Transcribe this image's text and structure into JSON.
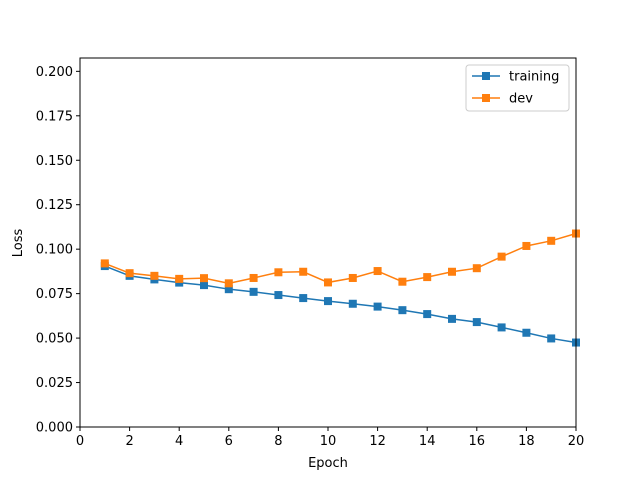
{
  "chart_data": {
    "type": "line",
    "title": "",
    "xlabel": "Epoch",
    "ylabel": "Loss",
    "xlim": [
      0,
      20
    ],
    "ylim": [
      0.0,
      0.2075
    ],
    "x_ticks": [
      0,
      2,
      4,
      6,
      8,
      10,
      12,
      14,
      16,
      18,
      20
    ],
    "y_ticks": [
      0.0,
      0.025,
      0.05,
      0.075,
      0.1,
      0.125,
      0.15,
      0.175,
      0.2
    ],
    "y_tick_labels": [
      "0.000",
      "0.025",
      "0.050",
      "0.075",
      "0.100",
      "0.125",
      "0.150",
      "0.175",
      "0.200"
    ],
    "grid": false,
    "legend_position": "top-right",
    "x": [
      1,
      2,
      3,
      4,
      5,
      6,
      7,
      8,
      9,
      10,
      11,
      12,
      13,
      14,
      15,
      16,
      17,
      18,
      19,
      20
    ],
    "series": [
      {
        "name": "training",
        "color": "#1f77b4",
        "marker": "square",
        "values": [
          0.0905,
          0.085,
          0.083,
          0.0812,
          0.0798,
          0.0775,
          0.076,
          0.0742,
          0.0725,
          0.0708,
          0.0693,
          0.0677,
          0.0657,
          0.0635,
          0.0608,
          0.059,
          0.056,
          0.053,
          0.0498,
          0.0475
        ]
      },
      {
        "name": "dev",
        "color": "#ff7f0e",
        "marker": "square",
        "values": [
          0.092,
          0.0865,
          0.085,
          0.0833,
          0.0837,
          0.0808,
          0.0838,
          0.087,
          0.0873,
          0.0813,
          0.0838,
          0.0877,
          0.0817,
          0.0843,
          0.0873,
          0.0893,
          0.0958,
          0.1018,
          0.1047,
          0.1088
        ]
      }
    ]
  }
}
